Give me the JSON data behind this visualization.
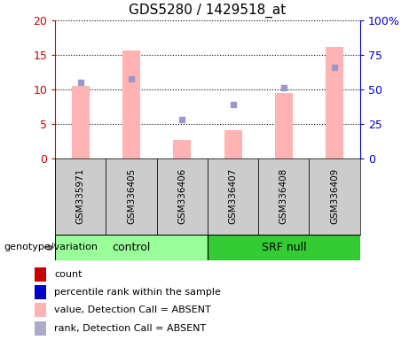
{
  "title": "GDS5280 / 1429518_at",
  "samples": [
    "GSM335971",
    "GSM336405",
    "GSM336406",
    "GSM336407",
    "GSM336408",
    "GSM336409"
  ],
  "groups": [
    "control",
    "control",
    "control",
    "SRF null",
    "SRF null",
    "SRF null"
  ],
  "bar_values": [
    10.5,
    15.6,
    2.6,
    4.1,
    9.5,
    16.2
  ],
  "dot_values": [
    55.0,
    57.5,
    28.0,
    39.0,
    51.0,
    66.0
  ],
  "bar_color": "#FFB3B3",
  "dot_color": "#9999CC",
  "ylim_left": [
    0,
    20
  ],
  "ylim_right": [
    0,
    100
  ],
  "yticks_left": [
    0,
    5,
    10,
    15,
    20
  ],
  "ytick_labels_left": [
    "0",
    "5",
    "10",
    "15",
    "20"
  ],
  "yticks_right": [
    0,
    25,
    50,
    75,
    100
  ],
  "ytick_labels_right": [
    "0",
    "25",
    "50",
    "75",
    "100%"
  ],
  "left_axis_color": "#CC0000",
  "right_axis_color": "#0000CC",
  "group_colors": {
    "control": "#99FF99",
    "SRF null": "#33CC33"
  },
  "group_label": "genotype/variation",
  "legend_items": [
    {
      "label": "count",
      "color": "#CC0000"
    },
    {
      "label": "percentile rank within the sample",
      "color": "#0000CC"
    },
    {
      "label": "value, Detection Call = ABSENT",
      "color": "#FFB3B3"
    },
    {
      "label": "rank, Detection Call = ABSENT",
      "color": "#AAAACC"
    }
  ],
  "figsize": [
    4.61,
    3.84
  ],
  "dpi": 100
}
